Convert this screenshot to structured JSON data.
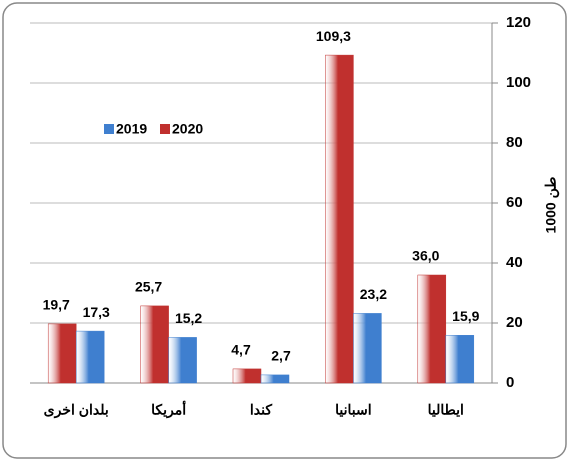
{
  "chart_data": {
    "type": "bar",
    "y_label": "1000 طن",
    "categories": [
      "بلدان اخرى",
      "أمريكا",
      "كندا",
      "اسبانيا",
      "ايطاليا"
    ],
    "series": [
      {
        "name": "2020",
        "color": "#c0302e",
        "values": [
          19.7,
          25.7,
          4.7,
          109.3,
          36.0
        ],
        "value_labels": [
          "19,7",
          "25,7",
          "4,7",
          "109,3",
          "36,0"
        ]
      },
      {
        "name": "2019",
        "color": "#3f7fcf",
        "values": [
          17.3,
          15.2,
          2.7,
          23.2,
          15.9
        ],
        "value_labels": [
          "17,3",
          "15,2",
          "2,7",
          "23,2",
          "15,9"
        ]
      }
    ],
    "ylim": [
      0,
      120
    ],
    "yticks": [
      0,
      20,
      40,
      60,
      80,
      100,
      120
    ],
    "grid": true
  }
}
